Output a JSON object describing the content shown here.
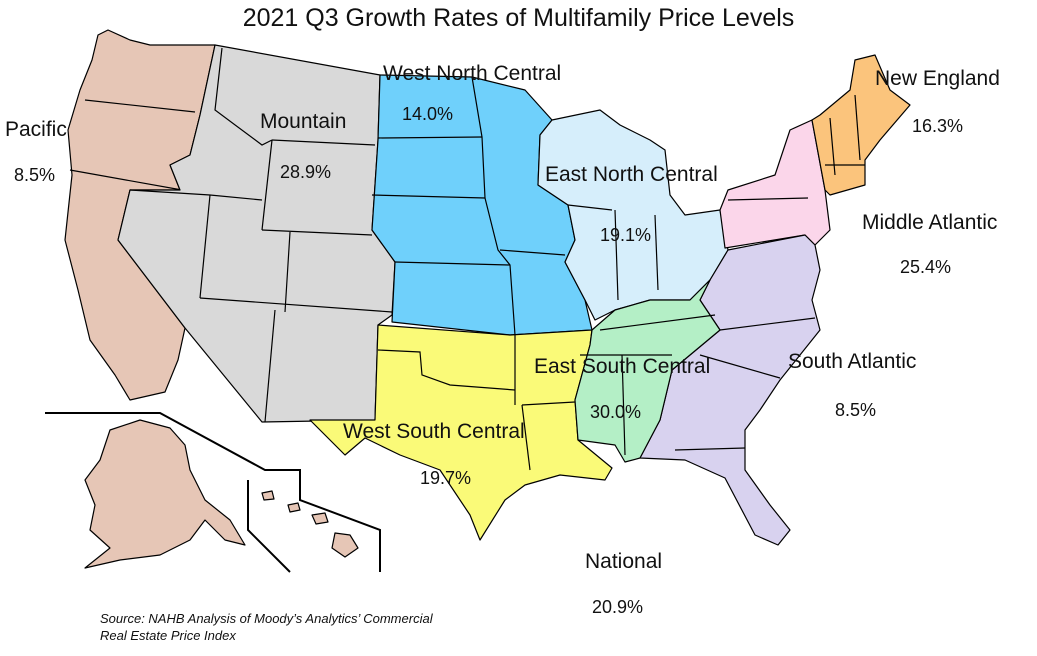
{
  "title": "2021 Q3 Growth Rates of Multifamily Price Levels",
  "regions": {
    "pacific": {
      "name": "Pacific",
      "value": "8.5%",
      "color": "#e6c6b6"
    },
    "mountain": {
      "name": "Mountain",
      "value": "28.9%",
      "color": "#d9d9d9"
    },
    "west_north_central": {
      "name": "West North Central",
      "value": "14.0%",
      "color": "#6fd0fb"
    },
    "east_north_central": {
      "name": "East North Central",
      "value": "19.1%",
      "color": "#d6eefb"
    },
    "new_england": {
      "name": "New England",
      "value": "16.3%",
      "color": "#fbc47c"
    },
    "middle_atlantic": {
      "name": "Middle Atlantic",
      "value": "25.4%",
      "color": "#fbd6ea"
    },
    "south_atlantic": {
      "name": "South Atlantic",
      "value": "8.5%",
      "color": "#d8d2ef"
    },
    "east_south_central": {
      "name": "East South Central",
      "value": "30.0%",
      "color": "#b4efc6"
    },
    "west_south_central": {
      "name": "West South Central",
      "value": "19.7%",
      "color": "#fafa78"
    }
  },
  "national": {
    "name": "National",
    "value": "20.9%"
  },
  "source": {
    "line1": "Source: NAHB Analysis of Moody’s Analytics’ Commercial",
    "line2": "Real Estate Price Index"
  }
}
